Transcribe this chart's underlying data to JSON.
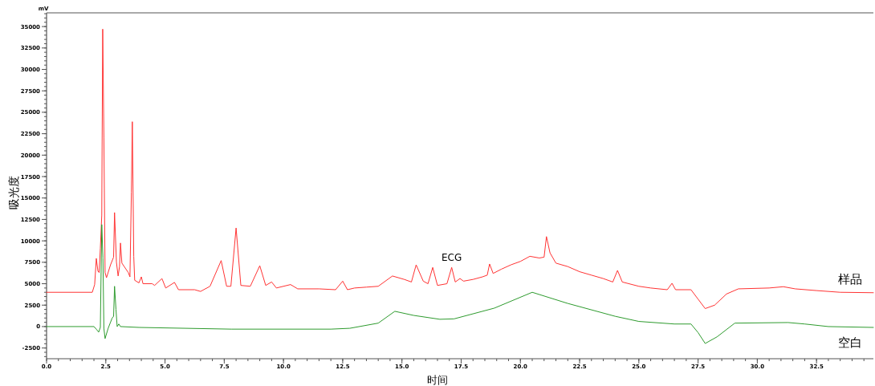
{
  "chart_data": {
    "type": "line",
    "xlabel": "时间",
    "ylabel": "吸光度",
    "annotations": [
      "mV",
      {
        "text": "ECG",
        "x": 17.1,
        "y": 6900
      }
    ],
    "xlim": [
      0,
      34.9
    ],
    "ylim": [
      -3750,
      36600
    ],
    "xticks": [
      {
        "value": 0,
        "label": "0.0"
      },
      {
        "value": 2.5,
        "label": "2.5"
      },
      {
        "value": 5,
        "label": "5.0"
      },
      {
        "value": 7.5,
        "label": "7.5"
      },
      {
        "value": 10,
        "label": "10.0"
      },
      {
        "value": 12.5,
        "label": "12.5"
      },
      {
        "value": 15,
        "label": "15.0"
      },
      {
        "value": 17.5,
        "label": "17.5"
      },
      {
        "value": 20,
        "label": "20.0"
      },
      {
        "value": 22.5,
        "label": "22.5"
      },
      {
        "value": 25,
        "label": "25.0"
      },
      {
        "value": 27.5,
        "label": "27.5"
      },
      {
        "value": 30,
        "label": "30.0"
      },
      {
        "value": 32.5,
        "label": "32.5"
      }
    ],
    "yticks": [
      -2500,
      0,
      2500,
      5000,
      7500,
      10000,
      12500,
      15000,
      17500,
      20000,
      22500,
      25000,
      27500,
      30000,
      32500,
      35000
    ],
    "grid": false,
    "legend": false,
    "marker": "none",
    "line_style": "solid",
    "series": [
      {
        "name": "样品",
        "color": "#ff3333",
        "x": [
          0,
          1.93,
          2.03,
          2.1,
          2.17,
          2.22,
          2.27,
          2.33,
          2.37,
          2.42,
          2.47,
          2.53,
          2.7,
          2.83,
          2.87,
          2.95,
          3.02,
          3.08,
          3.12,
          3.18,
          3.45,
          3.52,
          3.58,
          3.62,
          3.68,
          3.72,
          3.9,
          4.0,
          4.07,
          4.46,
          4.56,
          4.87,
          5.03,
          5.4,
          5.57,
          6.25,
          6.5,
          6.9,
          7.37,
          7.6,
          7.78,
          8.0,
          8.2,
          8.6,
          9.0,
          9.25,
          9.5,
          9.7,
          10.3,
          10.6,
          11.5,
          12.2,
          12.5,
          12.7,
          13.0,
          13.5,
          14.0,
          14.6,
          15.1,
          15.4,
          15.6,
          15.9,
          16.1,
          16.3,
          16.5,
          16.9,
          17.1,
          17.25,
          17.45,
          17.6,
          18.0,
          18.4,
          18.6,
          18.7,
          18.85,
          19.2,
          19.6,
          20.0,
          20.4,
          20.8,
          21.0,
          21.1,
          21.25,
          21.5,
          22.0,
          22.5,
          23.0,
          23.5,
          23.9,
          24.1,
          24.3,
          25.0,
          25.5,
          26.2,
          26.4,
          26.55,
          27.2,
          27.5,
          27.8,
          28.2,
          28.7,
          29.2,
          30.5,
          31.1,
          31.6,
          32.5,
          33.5,
          34.9
        ],
        "values": [
          4000,
          4000,
          4900,
          7950,
          6450,
          6300,
          9100,
          13000,
          34700,
          22000,
          6300,
          5700,
          7200,
          8100,
          13300,
          7500,
          5900,
          7000,
          9750,
          7400,
          6300,
          5800,
          15650,
          23900,
          8200,
          5400,
          5100,
          5800,
          5000,
          5000,
          4800,
          5600,
          4500,
          5150,
          4300,
          4300,
          4100,
          4700,
          7700,
          4700,
          4700,
          11500,
          4800,
          4700,
          7100,
          4800,
          5200,
          4500,
          4900,
          4400,
          4400,
          4300,
          5300,
          4300,
          4500,
          4600,
          4700,
          5900,
          5500,
          5200,
          7200,
          5300,
          5000,
          6900,
          4800,
          5000,
          6900,
          5200,
          5600,
          5300,
          5500,
          5800,
          6000,
          7300,
          6200,
          6700,
          7200,
          7600,
          8200,
          8000,
          8100,
          10500,
          8600,
          7400,
          7000,
          6400,
          6000,
          5600,
          5200,
          6550,
          5200,
          4700,
          4500,
          4300,
          5050,
          4300,
          4300,
          3200,
          2100,
          2500,
          3800,
          4400,
          4500,
          4650,
          4400,
          4200,
          4000,
          3950
        ]
      },
      {
        "name": "空白",
        "color": "#2e9b2e",
        "x": [
          0,
          2.0,
          2.1,
          2.2,
          2.27,
          2.33,
          2.38,
          2.42,
          2.47,
          2.6,
          2.77,
          2.83,
          2.87,
          2.93,
          2.98,
          3.05,
          3.12,
          3.9,
          7.8,
          12.0,
          12.8,
          14.0,
          14.7,
          15.5,
          16.6,
          17.2,
          18.9,
          20.5,
          22.0,
          24.0,
          25.0,
          26.5,
          27.2,
          27.5,
          27.8,
          28.3,
          29.05,
          31.3,
          32.0,
          33.0,
          34.9
        ],
        "values": [
          0,
          0,
          -300,
          -650,
          -100,
          11900,
          8000,
          -200,
          -1400,
          -200,
          1000,
          1200,
          4700,
          2000,
          0,
          300,
          0,
          -100,
          -300,
          -300,
          -200,
          400,
          1780,
          1300,
          850,
          900,
          2150,
          4000,
          2700,
          1200,
          600,
          300,
          300,
          -700,
          -1970,
          -1200,
          400,
          470,
          300,
          0,
          -100
        ]
      }
    ]
  }
}
